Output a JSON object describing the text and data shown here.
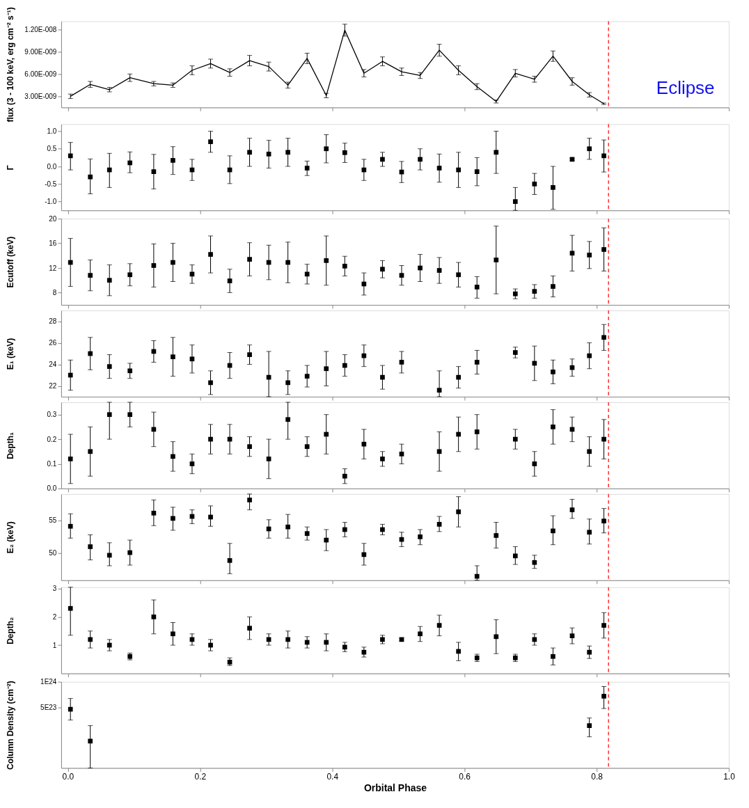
{
  "chart_data": [
    {
      "type": "line",
      "line_style": "solid",
      "ylabel": "flux (3 - 100 keV, erg cm⁻² s⁻¹)",
      "annotations": [
        "Eclipse"
      ],
      "xlim": [
        -0.01,
        1.0
      ],
      "xticks": [
        0,
        0.2,
        0.4,
        0.6,
        0.8,
        1.0
      ],
      "ylim": [
        1.5e-09,
        1.31e-08
      ],
      "yticks": [
        {
          "value": 3e-09,
          "label": "3.00E-009"
        },
        {
          "value": 6e-09,
          "label": "6.00E-009"
        },
        {
          "value": 9e-09,
          "label": "9.00E-009"
        },
        {
          "value": 1.2e-08,
          "label": "1.20E-008"
        }
      ],
      "tick_labels": "y",
      "ref_lines": [
        {
          "axis": "x",
          "value": 0.818,
          "color": "#ff3030",
          "line_style": "dashed"
        }
      ],
      "x": [
        0.004,
        0.034,
        0.063,
        0.094,
        0.13,
        0.159,
        0.188,
        0.216,
        0.245,
        0.275,
        0.304,
        0.333,
        0.362,
        0.391,
        0.419,
        0.448,
        0.476,
        0.505,
        0.533,
        0.562,
        0.591,
        0.619,
        0.648,
        0.677,
        0.706,
        0.734,
        0.763,
        0.789,
        0.811
      ],
      "series": [
        {
          "color": "#000000",
          "values": [
            3e-09,
            4.6e-09,
            3.9e-09,
            5.5e-09,
            4.7e-09,
            4.5e-09,
            6.5e-09,
            7.4e-09,
            6.2e-09,
            7.8e-09,
            7e-09,
            4.5e-09,
            8.1e-09,
            3.1e-09,
            1.19e-08,
            6.1e-09,
            7.7e-09,
            6.3e-09,
            5.8e-09,
            9.2e-09,
            6.5e-09,
            4.3e-09,
            2.3e-09,
            6.1e-09,
            5.3e-09,
            8.4e-09,
            5e-09,
            3.2e-09,
            2e-09
          ],
          "errors": [
            3e-10,
            4e-10,
            3e-10,
            5e-10,
            3e-10,
            3e-10,
            6e-10,
            6e-10,
            5e-10,
            7e-10,
            6e-10,
            4e-10,
            7e-10,
            3e-10,
            8e-10,
            5e-10,
            6e-10,
            5e-10,
            4e-10,
            8e-10,
            6e-10,
            4e-10,
            2e-10,
            5e-10,
            4e-10,
            7e-10,
            5e-10,
            3e-10,
            1e-10
          ]
        }
      ]
    },
    {
      "type": "scatter",
      "marker": "square",
      "ylabel": "Γ",
      "xlim": [
        -0.01,
        1.0
      ],
      "xticks": [
        0,
        0.2,
        0.4,
        0.6,
        0.8,
        1.0
      ],
      "ylim": [
        -1.25,
        1.2
      ],
      "yticks": [
        {
          "value": -1.0,
          "label": "-1.0"
        },
        {
          "value": -0.5,
          "label": "-0.5"
        },
        {
          "value": 0.0,
          "label": "0.0"
        },
        {
          "value": 0.5,
          "label": "0.5"
        },
        {
          "value": 1.0,
          "label": "1.0"
        }
      ],
      "tick_labels": "y",
      "ref_lines": [
        {
          "axis": "x",
          "value": 0.818,
          "color": "#ff3030",
          "line_style": "dashed"
        }
      ],
      "x": [
        0.004,
        0.034,
        0.063,
        0.094,
        0.13,
        0.159,
        0.188,
        0.216,
        0.245,
        0.275,
        0.304,
        0.333,
        0.362,
        0.391,
        0.419,
        0.448,
        0.476,
        0.505,
        0.533,
        0.562,
        0.591,
        0.619,
        0.648,
        0.677,
        0.706,
        0.734,
        0.763,
        0.789,
        0.811
      ],
      "series": [
        {
          "color": "#000000",
          "values": [
            0.3,
            -0.3,
            -0.1,
            0.1,
            -0.15,
            0.17,
            -0.1,
            0.7,
            -0.1,
            0.4,
            0.35,
            0.4,
            -0.05,
            0.5,
            0.39,
            -0.1,
            0.2,
            -0.16,
            0.2,
            -0.05,
            -0.1,
            -0.15,
            0.4,
            -1.0,
            -0.5,
            -0.6,
            0.2,
            0.5,
            0.3
          ],
          "errors": [
            [
              -0.1,
              0.68
            ],
            [
              -0.78,
              0.21
            ],
            [
              -0.6,
              0.37
            ],
            [
              -0.18,
              0.41
            ],
            [
              -0.64,
              0.34
            ],
            [
              -0.23,
              0.56
            ],
            [
              -0.4,
              0.2
            ],
            [
              0.4,
              1.0
            ],
            [
              -0.49,
              0.3
            ],
            [
              0.0,
              0.8
            ],
            [
              -0.05,
              0.74
            ],
            [
              0.0,
              0.8
            ],
            [
              -0.26,
              0.15
            ],
            [
              0.1,
              0.9
            ],
            [
              0.11,
              0.66
            ],
            [
              -0.4,
              0.2
            ],
            [
              0.0,
              0.4
            ],
            [
              -0.46,
              0.14
            ],
            [
              -0.1,
              0.5
            ],
            [
              -0.45,
              0.35
            ],
            [
              -0.6,
              0.4
            ],
            [
              -0.55,
              0.25
            ],
            [
              -0.2,
              1.0
            ],
            [
              -1.25,
              -0.6
            ],
            [
              -0.8,
              -0.2
            ],
            [
              -1.22,
              0.0
            ],
            [
              0.17,
              0.23
            ],
            [
              0.2,
              0.8
            ],
            [
              -0.16,
              0.75
            ]
          ]
        }
      ]
    },
    {
      "type": "scatter",
      "marker": "square",
      "ylabel": "Ecutoff (keV)",
      "xlim": [
        -0.01,
        1.0
      ],
      "xticks": [
        0,
        0.2,
        0.4,
        0.6,
        0.8,
        1.0
      ],
      "ylim": [
        6,
        20
      ],
      "yticks": [
        8,
        12,
        16,
        20
      ],
      "tick_labels": "y",
      "ref_lines": [
        {
          "axis": "x",
          "value": 0.818,
          "color": "#ff3030",
          "line_style": "dashed"
        }
      ],
      "x": [
        0.004,
        0.034,
        0.063,
        0.094,
        0.13,
        0.159,
        0.188,
        0.216,
        0.245,
        0.275,
        0.304,
        0.333,
        0.362,
        0.391,
        0.419,
        0.448,
        0.476,
        0.505,
        0.533,
        0.562,
        0.591,
        0.619,
        0.648,
        0.677,
        0.706,
        0.734,
        0.763,
        0.789,
        0.811
      ],
      "series": [
        {
          "color": "#000000",
          "values": [
            12.9,
            10.8,
            10.0,
            10.9,
            12.4,
            12.9,
            11.0,
            14.2,
            9.9,
            13.4,
            12.9,
            12.9,
            11.0,
            13.2,
            12.3,
            9.4,
            11.8,
            10.8,
            12.0,
            11.6,
            10.9,
            8.9,
            13.3,
            7.8,
            8.2,
            9.0,
            14.4,
            14.1,
            15.0
          ],
          "errors": [
            [
              9.0,
              16.8
            ],
            [
              8.3,
              13.3
            ],
            [
              7.5,
              12.5
            ],
            [
              9.1,
              12.7
            ],
            [
              8.9,
              15.9
            ],
            [
              9.8,
              16.0
            ],
            [
              9.5,
              12.5
            ],
            [
              11.2,
              17.2
            ],
            [
              8.0,
              11.8
            ],
            [
              10.7,
              16.1
            ],
            [
              10.1,
              15.7
            ],
            [
              9.6,
              16.2
            ],
            [
              9.4,
              12.6
            ],
            [
              9.2,
              17.2
            ],
            [
              10.7,
              13.9
            ],
            [
              7.6,
              11.2
            ],
            [
              10.4,
              13.2
            ],
            [
              9.2,
              12.4
            ],
            [
              9.8,
              14.2
            ],
            [
              9.5,
              13.7
            ],
            [
              8.9,
              12.9
            ],
            [
              7.1,
              10.6
            ],
            [
              7.8,
              18.8
            ],
            [
              7.0,
              8.6
            ],
            [
              7.1,
              9.3
            ],
            [
              7.3,
              10.7
            ],
            [
              11.5,
              17.3
            ],
            [
              11.9,
              16.3
            ],
            [
              11.5,
              18.5
            ]
          ]
        }
      ]
    },
    {
      "type": "scatter",
      "marker": "square",
      "ylabel": "E₁ (keV)",
      "xlim": [
        -0.01,
        1.0
      ],
      "xticks": [
        0,
        0.2,
        0.4,
        0.6,
        0.8,
        1.0
      ],
      "ylim": [
        21,
        29
      ],
      "yticks": [
        22,
        24,
        26,
        28
      ],
      "tick_labels": "y",
      "ref_lines": [
        {
          "axis": "x",
          "value": 0.818,
          "color": "#ff3030",
          "line_style": "dashed"
        }
      ],
      "x": [
        0.004,
        0.034,
        0.063,
        0.094,
        0.13,
        0.159,
        0.188,
        0.216,
        0.245,
        0.275,
        0.304,
        0.333,
        0.362,
        0.391,
        0.419,
        0.448,
        0.476,
        0.505,
        0.533,
        0.562,
        0.591,
        0.619,
        0.648,
        0.677,
        0.706,
        0.734,
        0.763,
        0.789,
        0.811
      ],
      "series": [
        {
          "color": "#000000",
          "values": [
            23.0,
            25.0,
            23.8,
            23.4,
            25.2,
            24.7,
            24.5,
            22.3,
            23.9,
            24.9,
            22.8,
            22.3,
            22.9,
            23.6,
            23.9,
            24.8,
            22.8,
            24.2,
            null,
            21.6,
            22.8,
            24.2,
            null,
            25.1,
            24.1,
            23.3,
            23.7,
            24.8,
            26.5
          ],
          "errors": [
            [
              21.6,
              24.4
            ],
            [
              23.5,
              26.5
            ],
            [
              22.7,
              24.9
            ],
            [
              22.7,
              24.1
            ],
            [
              24.2,
              26.2
            ],
            [
              22.9,
              26.5
            ],
            [
              23.2,
              25.8
            ],
            [
              21.2,
              23.4
            ],
            [
              22.7,
              25.1
            ],
            [
              24.0,
              25.8
            ],
            [
              21.0,
              25.2
            ],
            [
              21.2,
              23.4
            ],
            [
              21.9,
              23.9
            ],
            [
              22.0,
              25.2
            ],
            [
              22.9,
              24.9
            ],
            [
              23.8,
              25.8
            ],
            [
              21.7,
              23.9
            ],
            [
              23.2,
              25.2
            ],
            null,
            [
              21.0,
              23.4
            ],
            [
              21.8,
              23.8
            ],
            [
              23.1,
              25.3
            ],
            null,
            [
              24.6,
              25.6
            ],
            [
              22.5,
              25.7
            ],
            [
              22.2,
              24.4
            ],
            [
              22.9,
              24.5
            ],
            [
              23.6,
              26.0
            ],
            [
              25.3,
              27.7
            ]
          ]
        }
      ]
    },
    {
      "type": "scatter",
      "marker": "square",
      "ylabel": "Depth₁",
      "xlim": [
        -0.01,
        1.0
      ],
      "xticks": [
        0,
        0.2,
        0.4,
        0.6,
        0.8,
        1.0
      ],
      "ylim": [
        0,
        0.35
      ],
      "yticks": [
        {
          "value": 0,
          "label": "0.0"
        },
        0.1,
        0.2,
        0.3
      ],
      "tick_labels": "y",
      "ref_lines": [
        {
          "axis": "x",
          "value": 0.818,
          "color": "#ff3030",
          "line_style": "dashed"
        }
      ],
      "x": [
        0.004,
        0.034,
        0.063,
        0.094,
        0.13,
        0.159,
        0.188,
        0.216,
        0.245,
        0.275,
        0.304,
        0.333,
        0.362,
        0.391,
        0.419,
        0.448,
        0.476,
        0.505,
        0.533,
        0.562,
        0.591,
        0.619,
        0.648,
        0.677,
        0.706,
        0.734,
        0.763,
        0.789,
        0.811
      ],
      "series": [
        {
          "color": "#000000",
          "values": [
            0.12,
            0.15,
            0.3,
            0.3,
            0.24,
            0.13,
            0.1,
            0.2,
            0.2,
            0.17,
            0.12,
            0.28,
            0.17,
            0.22,
            0.05,
            0.18,
            0.12,
            0.14,
            null,
            0.15,
            0.22,
            0.23,
            null,
            0.2,
            0.1,
            0.25,
            0.24,
            0.15,
            0.2
          ],
          "errors": [
            [
              0.02,
              0.22
            ],
            [
              0.05,
              0.25
            ],
            [
              0.2,
              0.35
            ],
            [
              0.25,
              0.35
            ],
            [
              0.17,
              0.31
            ],
            [
              0.07,
              0.19
            ],
            [
              0.06,
              0.14
            ],
            [
              0.14,
              0.26
            ],
            [
              0.14,
              0.26
            ],
            [
              0.13,
              0.21
            ],
            [
              0.04,
              0.2
            ],
            [
              0.2,
              0.35
            ],
            [
              0.13,
              0.21
            ],
            [
              0.14,
              0.3
            ],
            [
              0.02,
              0.08
            ],
            [
              0.12,
              0.24
            ],
            [
              0.09,
              0.15
            ],
            [
              0.1,
              0.18
            ],
            null,
            [
              0.07,
              0.23
            ],
            [
              0.15,
              0.29
            ],
            [
              0.16,
              0.3
            ],
            null,
            [
              0.16,
              0.24
            ],
            [
              0.05,
              0.15
            ],
            [
              0.18,
              0.32
            ],
            [
              0.19,
              0.29
            ],
            [
              0.09,
              0.21
            ],
            [
              0.12,
              0.28
            ]
          ]
        }
      ]
    },
    {
      "type": "scatter",
      "marker": "square",
      "ylabel": "E₂ (keV)",
      "xlim": [
        -0.01,
        1.0
      ],
      "xticks": [
        0,
        0.2,
        0.4,
        0.6,
        0.8,
        1.0
      ],
      "ylim": [
        45.9,
        59.0
      ],
      "yticks": [
        50,
        55
      ],
      "tick_labels": "y",
      "ref_lines": [
        {
          "axis": "x",
          "value": 0.818,
          "color": "#ff3030",
          "line_style": "dashed"
        }
      ],
      "x": [
        0.004,
        0.034,
        0.063,
        0.094,
        0.13,
        0.159,
        0.188,
        0.216,
        0.245,
        0.275,
        0.304,
        0.333,
        0.362,
        0.391,
        0.419,
        0.448,
        0.476,
        0.505,
        0.533,
        0.562,
        0.591,
        0.619,
        0.648,
        0.677,
        0.706,
        0.734,
        0.763,
        0.789,
        0.811
      ],
      "series": [
        {
          "color": "#000000",
          "values": [
            54.1,
            51.0,
            49.7,
            50.1,
            56.1,
            55.3,
            55.6,
            55.5,
            48.9,
            58.1,
            53.7,
            54.0,
            53.0,
            52.0,
            53.6,
            49.8,
            53.6,
            52.1,
            52.5,
            54.4,
            56.3,
            46.5,
            52.7,
            49.6,
            48.6,
            53.4,
            56.6,
            53.2,
            54.9
          ],
          "errors": [
            [
              52.3,
              56.0
            ],
            [
              49.0,
              52.8
            ],
            [
              48.1,
              51.6
            ],
            [
              48.2,
              52.0
            ],
            [
              54.2,
              58.1
            ],
            [
              53.5,
              57.0
            ],
            [
              54.5,
              56.6
            ],
            [
              54.1,
              57.2
            ],
            [
              46.9,
              51.5
            ],
            [
              56.6,
              59.0
            ],
            [
              52.3,
              55.1
            ],
            [
              52.3,
              55.9
            ],
            [
              52.0,
              54.0
            ],
            [
              50.4,
              53.6
            ],
            [
              52.5,
              54.7
            ],
            [
              48.2,
              51.5
            ],
            [
              52.8,
              54.4
            ],
            [
              51.0,
              53.2
            ],
            [
              51.3,
              53.6
            ],
            [
              53.3,
              55.6
            ],
            [
              54.0,
              58.6
            ],
            [
              45.9,
              48.1
            ],
            [
              50.8,
              54.7
            ],
            [
              48.3,
              51.0
            ],
            [
              47.7,
              49.7
            ],
            [
              51.3,
              55.7
            ],
            [
              55.3,
              58.2
            ],
            [
              51.4,
              55.2
            ],
            [
              53.1,
              56.8
            ]
          ]
        }
      ]
    },
    {
      "type": "scatter",
      "marker": "square",
      "ylabel": "Depth₂",
      "xlim": [
        -0.01,
        1.0
      ],
      "xticks": [
        0,
        0.2,
        0.4,
        0.6,
        0.8,
        1.0
      ],
      "ylim": [
        0,
        3.05
      ],
      "yticks": [
        1,
        2,
        3
      ],
      "tick_labels": "y",
      "ref_lines": [
        {
          "axis": "x",
          "value": 0.818,
          "color": "#ff3030",
          "line_style": "dashed"
        }
      ],
      "x": [
        0.004,
        0.034,
        0.063,
        0.094,
        0.13,
        0.159,
        0.188,
        0.216,
        0.245,
        0.275,
        0.304,
        0.333,
        0.362,
        0.391,
        0.419,
        0.448,
        0.476,
        0.505,
        0.533,
        0.562,
        0.591,
        0.619,
        0.648,
        0.677,
        0.706,
        0.734,
        0.763,
        0.789,
        0.811
      ],
      "series": [
        {
          "color": "#000000",
          "values": [
            2.3,
            1.2,
            1.0,
            0.6,
            2.0,
            1.4,
            1.2,
            1.0,
            0.4,
            1.6,
            1.2,
            1.2,
            1.1,
            1.1,
            0.93,
            0.75,
            1.2,
            1.2,
            1.4,
            1.7,
            0.78,
            0.55,
            1.3,
            0.55,
            1.2,
            0.6,
            1.33,
            0.75,
            1.7
          ],
          "errors": [
            [
              1.35,
              3.05
            ],
            [
              0.9,
              1.5
            ],
            [
              0.8,
              1.2
            ],
            [
              0.48,
              0.72
            ],
            [
              1.4,
              2.6
            ],
            [
              1.0,
              1.8
            ],
            [
              1.0,
              1.4
            ],
            [
              0.8,
              1.2
            ],
            [
              0.28,
              0.55
            ],
            [
              1.2,
              2.0
            ],
            [
              1.0,
              1.4
            ],
            [
              0.9,
              1.5
            ],
            [
              0.9,
              1.3
            ],
            [
              0.8,
              1.4
            ],
            [
              0.77,
              1.1
            ],
            [
              0.58,
              0.93
            ],
            [
              1.05,
              1.35
            ],
            [
              1.15,
              1.25
            ],
            [
              1.13,
              1.66
            ],
            [
              1.33,
              2.06
            ],
            [
              0.45,
              1.1
            ],
            [
              0.42,
              0.68
            ],
            [
              0.7,
              1.9
            ],
            [
              0.42,
              0.68
            ],
            [
              1.0,
              1.4
            ],
            [
              0.3,
              0.9
            ],
            [
              1.05,
              1.61
            ],
            [
              0.53,
              0.97
            ],
            [
              1.25,
              2.15
            ]
          ]
        }
      ]
    },
    {
      "type": "scatter",
      "marker": "square",
      "log": "y",
      "ylabel": "Column Density (cm⁻²)",
      "xlabel": "Orbital Phase",
      "xlim": [
        -0.01,
        1.0
      ],
      "xticks": [
        {
          "value": 0,
          "label": "0.0"
        },
        {
          "value": 0.2,
          "label": "0.2"
        },
        {
          "value": 0.4,
          "label": "0.4"
        },
        {
          "value": 0.6,
          "label": "0.6"
        },
        {
          "value": 0.8,
          "label": "0.8"
        },
        {
          "value": 1.0,
          "label": "1.0"
        }
      ],
      "ylim": [
        1e+23,
        1e+24
      ],
      "yticks": [
        {
          "value": 5e+23,
          "label": "5E23"
        },
        {
          "value": 1e+24,
          "label": "1E24"
        }
      ],
      "ref_lines": [
        {
          "axis": "x",
          "value": 0.818,
          "color": "#ff3030",
          "line_style": "dashed"
        }
      ],
      "x": [
        0.004,
        0.034,
        0.789,
        0.811
      ],
      "series": [
        {
          "color": "#000000",
          "values": [
            4.8e+23,
            2.05e+23,
            3.1e+23,
            6.8e+23
          ],
          "errors": [
            [
              3.6e+23,
              6.4e+23
            ],
            [
              1e+23,
              3.1e+23
            ],
            [
              2.3e+23,
              3.8e+23
            ],
            [
              4.9e+23,
              8.8e+23
            ]
          ]
        }
      ]
    }
  ]
}
